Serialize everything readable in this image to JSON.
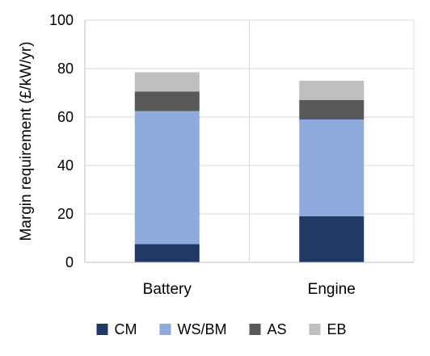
{
  "chart_data": {
    "type": "bar",
    "stacked": true,
    "title": "",
    "xlabel": "",
    "ylabel": "Margin requirement (£/kW/yr)",
    "ylim": [
      0,
      100
    ],
    "yticks": [
      0,
      20,
      40,
      60,
      80,
      100
    ],
    "grid": true,
    "legend_position": "bottom",
    "categories": [
      "Battery",
      "Engine"
    ],
    "series": [
      {
        "name": "CM",
        "values": [
          7.5,
          19
        ],
        "color": "#203864"
      },
      {
        "name": "WS/BM",
        "values": [
          55,
          40
        ],
        "color": "#8faadc"
      },
      {
        "name": "AS",
        "values": [
          8,
          8
        ],
        "color": "#595959"
      },
      {
        "name": "EB",
        "values": [
          8,
          8
        ],
        "color": "#bfbfbf"
      }
    ]
  }
}
